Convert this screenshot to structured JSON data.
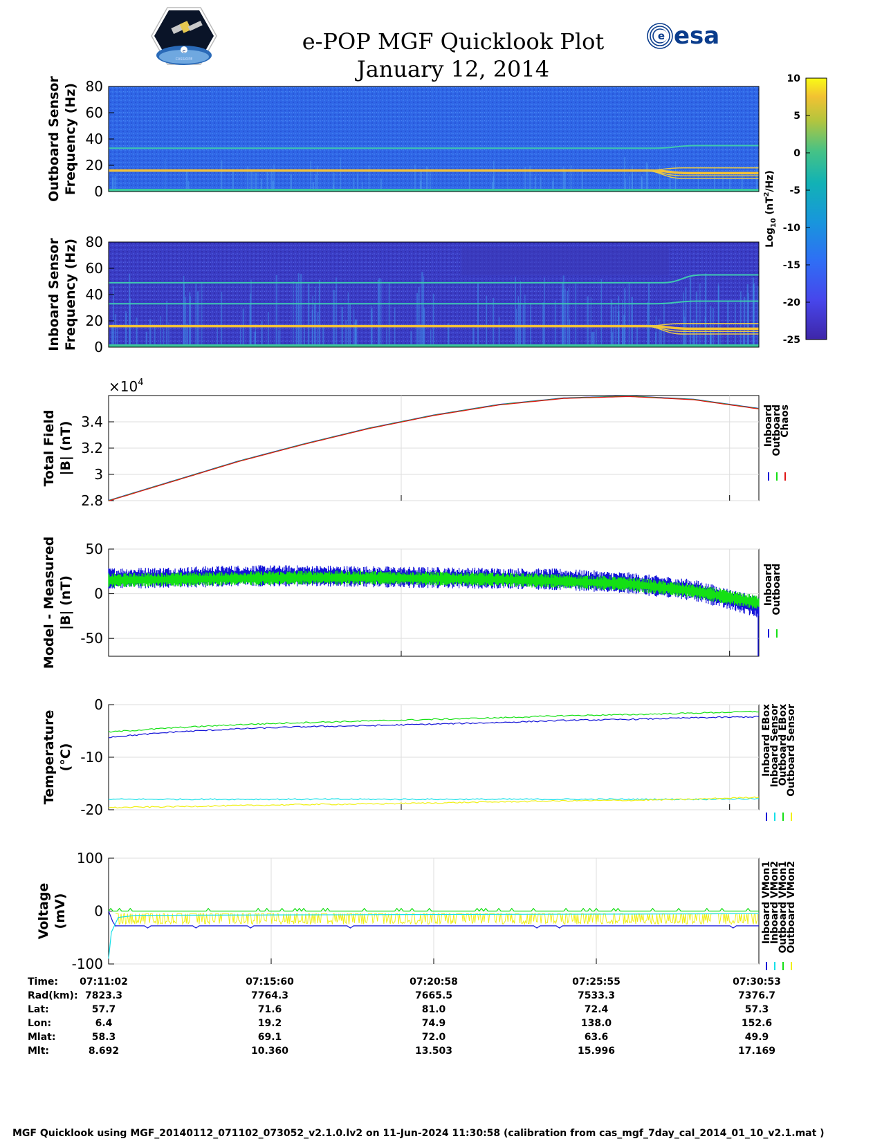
{
  "header": {
    "title_line1": "e-POP MGF Quicklook Plot",
    "title_line2": "January 12, 2014",
    "left_logo": "cassiope-mission-logo",
    "left_logo_text": "CASSIOPE",
    "right_logo_text": "esa"
  },
  "colors": {
    "inboard": "#1414d8",
    "outboard": "#14e014",
    "chaos": "#e01414",
    "cyan": "#14e0e8",
    "yellow": "#f0f014",
    "spec_bg": "#2e64e6",
    "spec_bg_dark": "#3a3cc0"
  },
  "colorbar": {
    "ticks": [
      "10",
      "5",
      "0",
      "-5",
      "-10",
      "-15",
      "-20",
      "-25"
    ],
    "range": [
      -25,
      10
    ],
    "label": "Log10 (nT2/Hz)",
    "colormap": "parula"
  },
  "chart_data": [
    {
      "type": "heatmap",
      "name": "outboard-spectrogram",
      "ylabel": [
        "Outboard Sensor",
        "Frequency (Hz)"
      ],
      "ylim": [
        0,
        80
      ],
      "yticks": [
        "80",
        "60",
        "40",
        "20",
        "0"
      ],
      "lines_hz": [
        {
          "start": 33,
          "end": 35,
          "shift_from_fraction": 0.84
        },
        {
          "start": 16,
          "end": 14,
          "shift_from_fraction": 0.83
        }
      ],
      "split_lines_hz": [
        18,
        12,
        10
      ]
    },
    {
      "type": "heatmap",
      "name": "inboard-spectrogram",
      "ylabel": [
        "Inboard Sensor",
        "Frequency (Hz)"
      ],
      "ylim": [
        0,
        80
      ],
      "yticks": [
        "80",
        "60",
        "40",
        "20",
        "0"
      ],
      "lines_hz": [
        {
          "start": 49,
          "end": 55,
          "shift_from_fraction": 0.85
        },
        {
          "start": 33,
          "end": 35,
          "shift_from_fraction": 0.84
        },
        {
          "start": 16,
          "end": 14,
          "shift_from_fraction": 0.83
        }
      ],
      "split_lines_hz": [
        18,
        12,
        10
      ]
    },
    {
      "type": "line",
      "name": "total-field",
      "ylabel": [
        "Total Field",
        "|B| (nT)"
      ],
      "ylim": [
        28000,
        36000
      ],
      "yticks": [
        "3.4",
        "3.2",
        "3",
        "2.8"
      ],
      "ytick_values": [
        34000,
        32000,
        30000,
        28000
      ],
      "exponent_label": "×10",
      "exponent_power": "4",
      "x": [
        0,
        0.1,
        0.2,
        0.3,
        0.4,
        0.5,
        0.6,
        0.7,
        0.8,
        0.9,
        1.0
      ],
      "series": [
        {
          "name": "Inboard",
          "values": [
            28000,
            29500,
            31000,
            32300,
            33500,
            34500,
            35300,
            35800,
            35950,
            35700,
            35000
          ]
        },
        {
          "name": "Outboard",
          "values": [
            28000,
            29500,
            31000,
            32300,
            33500,
            34500,
            35300,
            35800,
            35950,
            35700,
            35000
          ]
        },
        {
          "name": "Chaos",
          "values": [
            28000,
            29500,
            31000,
            32300,
            33500,
            34500,
            35300,
            35800,
            35950,
            35700,
            35000
          ]
        }
      ],
      "grid_x_fractions": [
        0.45,
        0.955
      ],
      "grid": true
    },
    {
      "type": "line",
      "name": "model-minus-measured",
      "ylabel": [
        "Model - Measured",
        "|B| (nT)"
      ],
      "ylim": [
        -70,
        50
      ],
      "yticks": [
        "50",
        "0",
        "-50"
      ],
      "ytick_values": [
        50,
        0,
        -50
      ],
      "series": [
        {
          "name": "Inboard",
          "centre": [
            17,
            18,
            20,
            20,
            19,
            18,
            17,
            16,
            12,
            4,
            -15
          ],
          "spread": 12
        },
        {
          "name": "Outboard",
          "centre": [
            15,
            16,
            17,
            18,
            18,
            17,
            16,
            14,
            11,
            3,
            -10
          ],
          "spread": 8
        }
      ],
      "grid_x_fractions": [
        0.45,
        0.955
      ],
      "grid": true
    },
    {
      "type": "line",
      "name": "temperature",
      "ylabel": [
        "Temperature",
        "(°C)"
      ],
      "ylim": [
        -20,
        0
      ],
      "yticks": [
        "0",
        "-10",
        "-20"
      ],
      "ytick_values": [
        0,
        -10,
        -20
      ],
      "series": [
        {
          "name": "Inboard EBox",
          "values": [
            -6.2,
            -5.2,
            -4.6,
            -4.2,
            -4.0,
            -3.7,
            -3.4,
            -3.0,
            -2.8,
            -2.5,
            -2.3
          ]
        },
        {
          "name": "Inboard Sensor",
          "values": [
            -18.0,
            -18.0,
            -18.0,
            -18.0,
            -18.0,
            -18.0,
            -18.0,
            -18.0,
            -18.0,
            -18.0,
            -17.9
          ]
        },
        {
          "name": "Outboard EBox",
          "values": [
            -5.2,
            -4.4,
            -3.8,
            -3.4,
            -3.1,
            -2.8,
            -2.5,
            -2.1,
            -1.9,
            -1.6,
            -1.3
          ]
        },
        {
          "name": "Outboard Sensor",
          "values": [
            -19.6,
            -19.4,
            -19.2,
            -19.0,
            -18.9,
            -18.7,
            -18.5,
            -18.3,
            -18.2,
            -18.0,
            -17.6
          ]
        }
      ],
      "grid_x_fractions": [
        0.45,
        0.955
      ],
      "grid": true
    },
    {
      "type": "line",
      "name": "voltage",
      "ylabel": [
        "Voltage",
        "(mV)"
      ],
      "ylim": [
        -100,
        100
      ],
      "yticks": [
        "100",
        "0",
        "-100"
      ],
      "ytick_values": [
        100,
        0,
        -100
      ],
      "series": [
        {
          "name": "Inboard VMon1",
          "value": -28
        },
        {
          "name": "Inboard VMon2",
          "value": -5
        },
        {
          "name": "Outboard VMon1",
          "value": 0
        },
        {
          "name": "Outboard VMon2",
          "value": -15
        }
      ],
      "grid_x_fractions": [
        0.25,
        0.5,
        0.75
      ],
      "grid": true
    }
  ],
  "legends": {
    "total_field": [
      "Inboard",
      "Outboard",
      "Chaos"
    ],
    "model_measured": [
      "Inboard",
      "Outboard"
    ],
    "temperature": [
      "Inboard EBox",
      "Inboard Sensor",
      "Outboard EBox",
      "Outboard Sensor"
    ],
    "voltage": [
      "Inboard VMon1",
      "Inboard VMon2",
      "Outboard VMon1",
      "Outboard VMon2"
    ]
  },
  "orbit_table": {
    "row_labels": [
      "Time:",
      "Rad(km):",
      "Lat:",
      "Lon:",
      "Mlat:",
      "Mlt:"
    ],
    "columns": [
      [
        "07:11:02",
        "7823.3",
        "57.7",
        "6.4",
        "58.3",
        "8.692"
      ],
      [
        "07:15:60",
        "7764.3",
        "71.6",
        "19.2",
        "69.1",
        "10.360"
      ],
      [
        "07:20:58",
        "7665.5",
        "81.0",
        "74.9",
        "72.0",
        "13.503"
      ],
      [
        "07:25:55",
        "7533.3",
        "72.4",
        "138.0",
        "63.6",
        "15.996"
      ],
      [
        "07:30:53",
        "7376.7",
        "57.3",
        "152.6",
        "49.9",
        "17.169"
      ]
    ]
  },
  "footer": "MGF Quicklook using MGF_20140112_071102_073052_v2.1.0.lv2 on 11-Jun-2024 11:30:58 (calibration from cas_mgf_7day_cal_2014_01_10_v2.1.mat )"
}
